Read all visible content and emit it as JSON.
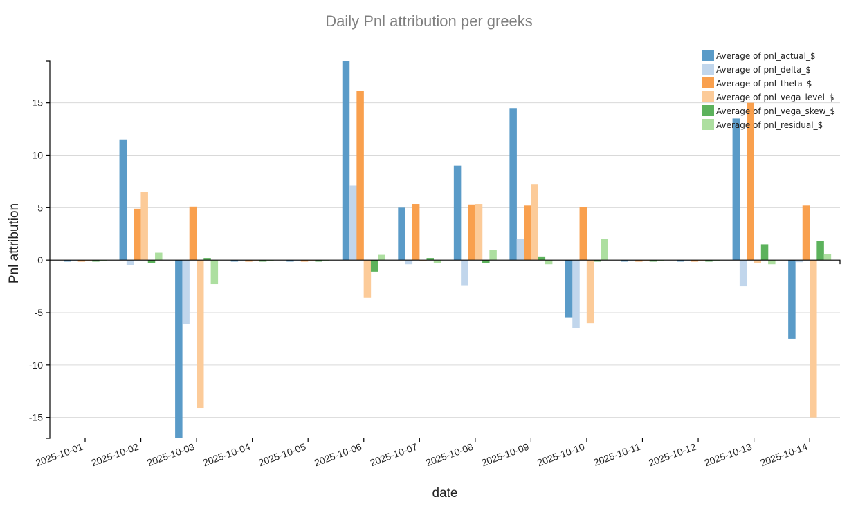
{
  "chart_data": {
    "type": "bar",
    "title": "Daily Pnl attribution per greeks",
    "xlabel": "date",
    "ylabel": "Pnl attribution",
    "ylim": [
      -17,
      19
    ],
    "yticks": [
      -15,
      -10,
      -5,
      0,
      5,
      10,
      15
    ],
    "ytick_labels": [
      "-15",
      "-10",
      "-5",
      "0",
      "5",
      "10",
      "15"
    ],
    "grid": true,
    "legend_position": "top-right",
    "categories": [
      "2025-10-01",
      "2025-10-02",
      "2025-10-03",
      "2025-10-04",
      "2025-10-05",
      "2025-10-06",
      "2025-10-07",
      "2025-10-08",
      "2025-10-09",
      "2025-10-10",
      "2025-10-11",
      "2025-10-12",
      "2025-10-13",
      "2025-10-14"
    ],
    "series": [
      {
        "name": "Average of pnl_actual_$",
        "color": "#5a9bc8",
        "values": [
          -0.15,
          11.5,
          -17,
          -0.15,
          -0.15,
          19,
          5,
          9,
          14.5,
          -5.5,
          -0.15,
          -0.15,
          13.5,
          -7.5
        ]
      },
      {
        "name": "Average of pnl_delta_$",
        "color": "#c1d6ec",
        "values": [
          -0.1,
          -0.5,
          -6.1,
          -0.1,
          -0.1,
          7.1,
          -0.4,
          -2.4,
          2,
          -6.5,
          -0.1,
          -0.1,
          -2.5,
          -0.2
        ]
      },
      {
        "name": "Average of pnl_theta_$",
        "color": "#f9a04e",
        "values": [
          -0.15,
          4.9,
          5.1,
          -0.15,
          -0.15,
          16.1,
          5.35,
          5.3,
          5.2,
          5.05,
          -0.15,
          -0.15,
          15,
          5.2
        ]
      },
      {
        "name": "Average of pnl_vega_level_$",
        "color": "#fccb99",
        "values": [
          -0.1,
          6.5,
          -14.1,
          -0.1,
          -0.1,
          -3.6,
          -0.1,
          5.35,
          7.25,
          -6,
          -0.1,
          -0.1,
          -0.3,
          -15
        ]
      },
      {
        "name": "Average of pnl_vega_skew_$",
        "color": "#5cb25c",
        "values": [
          -0.15,
          -0.3,
          0.2,
          -0.15,
          -0.15,
          -1.1,
          0.2,
          -0.3,
          0.35,
          -0.15,
          -0.15,
          -0.15,
          1.5,
          1.8
        ]
      },
      {
        "name": "Average of pnl_residual_$",
        "color": "#addfa0",
        "values": [
          -0.1,
          0.7,
          -2.3,
          -0.1,
          -0.1,
          0.5,
          -0.3,
          0.95,
          -0.4,
          2,
          -0.1,
          -0.1,
          -0.4,
          0.55
        ]
      }
    ]
  }
}
